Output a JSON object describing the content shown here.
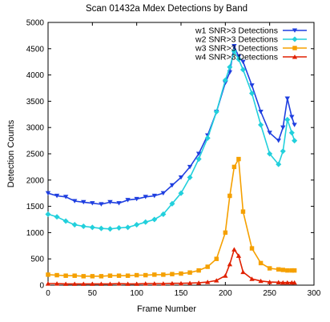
{
  "chart_data": {
    "type": "line",
    "title": "Scan 01432a Mdex Detections by Band",
    "xlabel": "Frame Number",
    "ylabel": "Detection Counts",
    "xlim": [
      0,
      300
    ],
    "ylim": [
      0,
      5000
    ],
    "x_ticks": [
      "0",
      "50",
      "100",
      "150",
      "200",
      "250",
      "300"
    ],
    "y_ticks": [
      "0",
      "500",
      "1000",
      "1500",
      "2000",
      "2500",
      "3000",
      "3500",
      "4000",
      "4500",
      "5000"
    ],
    "grid": false,
    "legend_position": "top-right",
    "x": [
      0,
      10,
      20,
      30,
      40,
      50,
      60,
      70,
      80,
      90,
      100,
      110,
      120,
      130,
      140,
      150,
      160,
      170,
      180,
      190,
      200,
      205,
      210,
      215,
      220,
      230,
      240,
      250,
      260,
      265,
      270,
      275,
      278
    ],
    "series": [
      {
        "name": "w1 SNR>3 Detections",
        "color": "#1f3fe0",
        "marker": "triangle-down",
        "values": [
          1750,
          1700,
          1680,
          1600,
          1580,
          1560,
          1540,
          1580,
          1560,
          1620,
          1640,
          1680,
          1700,
          1750,
          1900,
          2050,
          2250,
          2500,
          2850,
          3300,
          3850,
          4050,
          4550,
          4350,
          4250,
          3800,
          3300,
          2900,
          2750,
          3000,
          3550,
          3200,
          3050
        ]
      },
      {
        "name": "w2 SNR>3 Detections",
        "color": "#22d0dc",
        "marker": "diamond",
        "values": [
          1350,
          1300,
          1220,
          1150,
          1120,
          1100,
          1080,
          1070,
          1090,
          1100,
          1150,
          1200,
          1250,
          1350,
          1550,
          1750,
          2050,
          2400,
          2800,
          3300,
          3900,
          4150,
          4450,
          4300,
          4100,
          3650,
          3050,
          2500,
          2300,
          2550,
          3150,
          2900,
          2750
        ]
      },
      {
        "name": "w3 SNR>3 Detections",
        "color": "#f5a000",
        "marker": "square",
        "values": [
          200,
          190,
          180,
          180,
          170,
          170,
          170,
          180,
          180,
          180,
          190,
          190,
          200,
          200,
          210,
          220,
          240,
          280,
          350,
          500,
          1000,
          1700,
          2250,
          2400,
          1400,
          700,
          420,
          320,
          300,
          290,
          280,
          280,
          280
        ]
      },
      {
        "name": "w4 SNR>3 Detections",
        "color": "#e02000",
        "marker": "triangle-up",
        "values": [
          30,
          30,
          25,
          25,
          25,
          25,
          25,
          25,
          30,
          25,
          25,
          30,
          30,
          30,
          35,
          35,
          40,
          45,
          60,
          90,
          180,
          400,
          680,
          560,
          250,
          120,
          80,
          60,
          55,
          50,
          50,
          50,
          50
        ]
      }
    ]
  }
}
